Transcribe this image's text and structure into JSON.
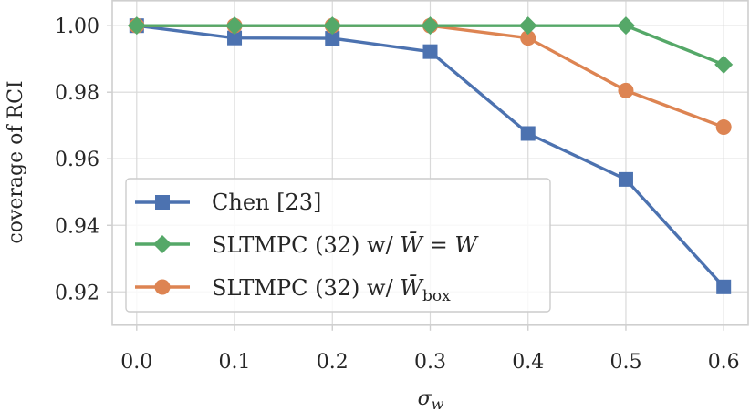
{
  "chart_data": {
    "type": "line",
    "title": "",
    "xlabel": "σ",
    "xlabel_sub": "w",
    "ylabel": "coverage of RCI",
    "x": [
      0.0,
      0.1,
      0.2,
      0.3,
      0.4,
      0.5,
      0.6
    ],
    "x_tick_labels": [
      "0.0",
      "0.1",
      "0.2",
      "0.3",
      "0.4",
      "0.5",
      "0.6"
    ],
    "y_ticks": [
      0.92,
      0.94,
      0.96,
      0.98,
      1.0
    ],
    "y_tick_labels": [
      "0.92",
      "0.94",
      "0.96",
      "0.98",
      "1.00"
    ],
    "xlim": [
      -0.025,
      0.625
    ],
    "ylim": [
      0.91,
      1.0075
    ],
    "grid": true,
    "legend_position": "lower-left",
    "series": [
      {
        "name": "Chen [23]",
        "marker": "square",
        "color": "#4c72b0",
        "values": [
          1.0,
          0.9963,
          0.9962,
          0.9922,
          0.9676,
          0.9538,
          0.9215
        ]
      },
      {
        "name": "SLTMPC (32) w/ W̄ = W",
        "label_prefix": "SLTMPC (32) w/ ",
        "label_math": "W̄ = W",
        "marker": "diamond",
        "color": "#55a868",
        "values": [
          1.0,
          1.0,
          1.0,
          1.0,
          1.0,
          1.0,
          0.9883
        ]
      },
      {
        "name": "SLTMPC (32) w/ W̄box",
        "label_prefix": "SLTMPC (32) w/ ",
        "label_math": "W̄",
        "label_sub": "box",
        "marker": "circle",
        "color": "#dd8452",
        "values": [
          1.0,
          1.0,
          1.0,
          1.0,
          0.9963,
          0.9805,
          0.9695
        ]
      }
    ]
  }
}
